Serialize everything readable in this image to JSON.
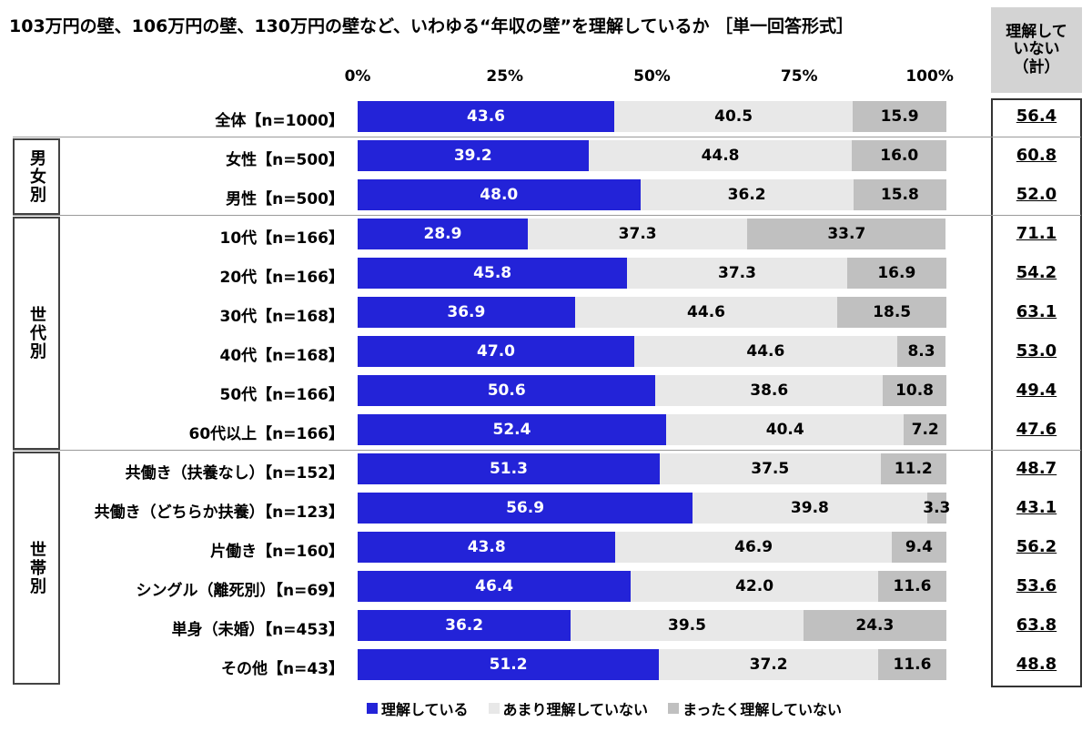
{
  "title": "103万円の壁、106万円の壁、130万円の壁など、いわゆる“年収の壁”を理解しているか ［単一回答形式］",
  "summary_header": "理解して\nいない\n（計）",
  "colors": {
    "understand": "#2323d8",
    "not_much": "#e8e8e8",
    "not_at_all": "#c0c0c0",
    "understand_text": "#ffffff",
    "other_text": "#000000"
  },
  "chart_data": {
    "type": "bar",
    "orientation": "horizontal",
    "stacked": true,
    "xlim": [
      0,
      100
    ],
    "ticks": [
      "0%",
      "25%",
      "50%",
      "75%",
      "100%"
    ],
    "legend_position": "bottom",
    "series": [
      {
        "name": "理解している"
      },
      {
        "name": "あまり理解していない"
      },
      {
        "name": "まったく理解していない"
      }
    ],
    "groups": [
      {
        "label": "男女別",
        "from": 1,
        "to": 2
      },
      {
        "label": "世代別",
        "from": 3,
        "to": 8
      },
      {
        "label": "世帯別",
        "from": 9,
        "to": 14
      }
    ],
    "rows": [
      {
        "label": "全体【n=1000】",
        "values": [
          43.6,
          40.5,
          15.9
        ],
        "labels": [
          "43.6",
          "40.5",
          "15.9"
        ],
        "not_understood_total": "56.4"
      },
      {
        "label": "女性【n=500】",
        "values": [
          39.2,
          44.8,
          16.0
        ],
        "labels": [
          "39.2",
          "44.8",
          "16.0"
        ],
        "not_understood_total": "60.8"
      },
      {
        "label": "男性【n=500】",
        "values": [
          48.0,
          36.2,
          15.8
        ],
        "labels": [
          "48.0",
          "36.2",
          "15.8"
        ],
        "not_understood_total": "52.0"
      },
      {
        "label": "10代【n=166】",
        "values": [
          28.9,
          37.3,
          33.7
        ],
        "labels": [
          "28.9",
          "37.3",
          "33.7"
        ],
        "not_understood_total": "71.1"
      },
      {
        "label": "20代【n=166】",
        "values": [
          45.8,
          37.3,
          16.9
        ],
        "labels": [
          "45.8",
          "37.3",
          "16.9"
        ],
        "not_understood_total": "54.2"
      },
      {
        "label": "30代【n=168】",
        "values": [
          36.9,
          44.6,
          18.5
        ],
        "labels": [
          "36.9",
          "44.6",
          "18.5"
        ],
        "not_understood_total": "63.1"
      },
      {
        "label": "40代【n=168】",
        "values": [
          47.0,
          44.6,
          8.3
        ],
        "labels": [
          "47.0",
          "44.6",
          "8.3"
        ],
        "not_understood_total": "53.0"
      },
      {
        "label": "50代【n=166】",
        "values": [
          50.6,
          38.6,
          10.8
        ],
        "labels": [
          "50.6",
          "38.6",
          "10.8"
        ],
        "not_understood_total": "49.4"
      },
      {
        "label": "60代以上【n=166】",
        "values": [
          52.4,
          40.4,
          7.2
        ],
        "labels": [
          "52.4",
          "40.4",
          "7.2"
        ],
        "not_understood_total": "47.6"
      },
      {
        "label": "共働き（扶養なし）【n=152】",
        "values": [
          51.3,
          37.5,
          11.2
        ],
        "labels": [
          "51.3",
          "37.5",
          "11.2"
        ],
        "not_understood_total": "48.7"
      },
      {
        "label": "共働き（どちらか扶養）【n=123】",
        "values": [
          56.9,
          39.8,
          3.3
        ],
        "labels": [
          "56.9",
          "39.8",
          "3.3"
        ],
        "not_understood_total": "43.1"
      },
      {
        "label": "片働き【n=160】",
        "values": [
          43.8,
          46.9,
          9.4
        ],
        "labels": [
          "43.8",
          "46.9",
          "9.4"
        ],
        "not_understood_total": "56.2"
      },
      {
        "label": "シングル（離死別）【n=69】",
        "values": [
          46.4,
          42.0,
          11.6
        ],
        "labels": [
          "46.4",
          "42.0",
          "11.6"
        ],
        "not_understood_total": "53.6"
      },
      {
        "label": "単身（未婚）【n=453】",
        "values": [
          36.2,
          39.5,
          24.3
        ],
        "labels": [
          "36.2",
          "39.5",
          "24.3"
        ],
        "not_understood_total": "63.8"
      },
      {
        "label": "その他【n=43】",
        "values": [
          51.2,
          37.2,
          11.6
        ],
        "labels": [
          "51.2",
          "37.2",
          "11.6"
        ],
        "not_understood_total": "48.8"
      }
    ]
  }
}
